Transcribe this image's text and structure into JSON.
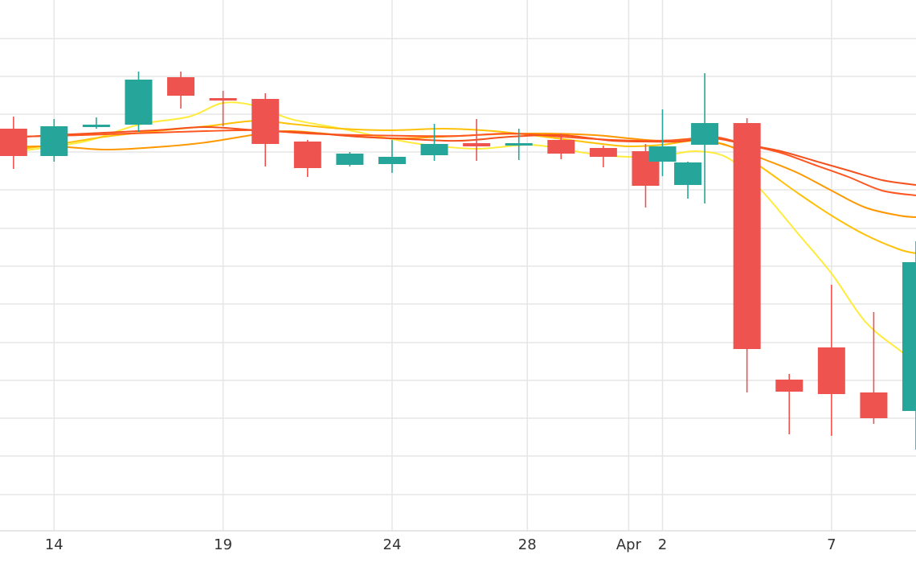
{
  "chart_data": {
    "type": "candlestick",
    "x_axis": {
      "tick_labels": [
        {
          "label": "14",
          "day": 14
        },
        {
          "label": "19",
          "day": 19
        },
        {
          "label": "24",
          "day": 24
        },
        {
          "label": "28",
          "day": 28
        },
        {
          "label": "Apr",
          "day": 31
        },
        {
          "label": "2",
          "day": 32
        },
        {
          "label": "7",
          "day": 37
        }
      ],
      "range": [
        12.4,
        39.5
      ]
    },
    "y_axis": {
      "range": [
        0,
        660
      ],
      "gridlines": [
        45,
        93,
        140,
        187,
        234,
        282,
        329,
        376,
        424,
        471,
        518,
        565,
        612
      ],
      "tick_labels_visible": false
    },
    "grid": true,
    "colors": {
      "up": "#26a69a",
      "down": "#ef5350",
      "grid": "#e6e6e6",
      "ma_lines": [
        "#ffeb3b",
        "#ffc107",
        "#ff9800",
        "#ff5722",
        "#f4511e"
      ]
    },
    "candles": [
      {
        "day": 12.8,
        "open": 500,
        "high": 515,
        "low": 450,
        "close": 466
      },
      {
        "day": 14.0,
        "open": 466,
        "high": 512,
        "low": 459,
        "close": 503
      },
      {
        "day": 15.25,
        "open": 503,
        "high": 514,
        "low": 500,
        "close": 505
      },
      {
        "day": 16.5,
        "open": 505,
        "high": 571,
        "low": 496,
        "close": 561
      },
      {
        "day": 17.75,
        "open": 564,
        "high": 571,
        "low": 525,
        "close": 541
      },
      {
        "day": 19.0,
        "open": 538,
        "high": 547,
        "low": 503,
        "close": 536
      },
      {
        "day": 20.25,
        "open": 537,
        "high": 544,
        "low": 453,
        "close": 481
      },
      {
        "day": 21.5,
        "open": 484,
        "high": 486,
        "low": 440,
        "close": 451
      },
      {
        "day": 22.75,
        "open": 455,
        "high": 471,
        "low": 453,
        "close": 469
      },
      {
        "day": 24.0,
        "open": 456,
        "high": 486,
        "low": 445,
        "close": 465
      },
      {
        "day": 25.25,
        "open": 467,
        "high": 506,
        "low": 460,
        "close": 481
      },
      {
        "day": 26.5,
        "open": 482,
        "high": 512,
        "low": 460,
        "close": 478
      },
      {
        "day": 27.75,
        "open": 481,
        "high": 500,
        "low": 461,
        "close": 482
      },
      {
        "day": 29.0,
        "open": 486,
        "high": 494,
        "low": 462,
        "close": 469
      },
      {
        "day": 30.25,
        "open": 476,
        "high": 479,
        "low": 452,
        "close": 465
      },
      {
        "day": 31.5,
        "open": 472,
        "high": 481,
        "low": 402,
        "close": 429
      },
      {
        "day": 32.75,
        "open": 430,
        "high": 459,
        "low": 413,
        "close": 458
      },
      {
        "day": 32.0,
        "open": 459,
        "high": 524,
        "low": 441,
        "close": 478
      },
      {
        "day": 33.25,
        "open": 480,
        "high": 569,
        "low": 407,
        "close": 507
      },
      {
        "day": 34.5,
        "open": 507,
        "high": 513,
        "low": 172,
        "close": 226
      },
      {
        "day": 35.75,
        "open": 188,
        "high": 195,
        "low": 120,
        "close": 173
      },
      {
        "day": 37.0,
        "open": 228,
        "high": 306,
        "low": 118,
        "close": 170
      },
      {
        "day": 38.25,
        "open": 172,
        "high": 272,
        "low": 133,
        "close": 140
      },
      {
        "day": 39.5,
        "open": 149,
        "high": 360,
        "low": 101,
        "close": 334
      }
    ],
    "moving_averages": [
      {
        "color": "#ffeb3b",
        "points": [
          [
            12.4,
            470
          ],
          [
            13.5,
            475
          ],
          [
            15,
            485
          ],
          [
            16.5,
            505
          ],
          [
            18,
            515
          ],
          [
            19,
            532
          ],
          [
            20,
            528
          ],
          [
            21,
            512
          ],
          [
            22.5,
            500
          ],
          [
            24,
            487
          ],
          [
            25,
            480
          ],
          [
            26.5,
            475
          ],
          [
            28,
            480
          ],
          [
            29,
            475
          ],
          [
            30,
            468
          ],
          [
            31,
            465
          ],
          [
            32,
            466
          ],
          [
            33,
            472
          ],
          [
            34,
            462
          ],
          [
            35,
            420
          ],
          [
            36,
            370
          ],
          [
            37,
            320
          ],
          [
            38,
            260
          ],
          [
            39,
            225
          ],
          [
            39.5,
            210
          ]
        ]
      },
      {
        "color": "#ffc107",
        "points": [
          [
            12.4,
            472
          ],
          [
            14,
            480
          ],
          [
            15.5,
            490
          ],
          [
            17,
            497
          ],
          [
            18.5,
            503
          ],
          [
            20,
            510
          ],
          [
            21,
            506
          ],
          [
            22.5,
            500
          ],
          [
            24,
            498
          ],
          [
            25.5,
            500
          ],
          [
            27,
            497
          ],
          [
            28.5,
            490
          ],
          [
            30,
            482
          ],
          [
            31,
            478
          ],
          [
            32,
            480
          ],
          [
            33,
            485
          ],
          [
            34,
            478
          ],
          [
            35,
            450
          ],
          [
            36,
            420
          ],
          [
            37,
            392
          ],
          [
            38,
            368
          ],
          [
            39,
            350
          ],
          [
            39.5,
            345
          ]
        ]
      },
      {
        "color": "#ff9800",
        "points": [
          [
            12.4,
            477
          ],
          [
            14,
            478
          ],
          [
            15.5,
            474
          ],
          [
            17,
            477
          ],
          [
            18.5,
            483
          ],
          [
            20,
            493
          ],
          [
            21,
            497
          ],
          [
            22.5,
            492
          ],
          [
            24,
            488
          ],
          [
            25.5,
            490
          ],
          [
            27,
            493
          ],
          [
            28.5,
            494
          ],
          [
            30,
            492
          ],
          [
            31,
            488
          ],
          [
            32,
            485
          ],
          [
            33,
            487
          ],
          [
            34,
            478
          ],
          [
            35,
            462
          ],
          [
            36,
            445
          ],
          [
            37,
            423
          ],
          [
            38,
            402
          ],
          [
            39,
            392
          ],
          [
            39.5,
            390
          ]
        ]
      },
      {
        "color": "#ff5722",
        "points": [
          [
            12.4,
            490
          ],
          [
            14,
            491
          ],
          [
            15.5,
            493
          ],
          [
            17,
            495
          ],
          [
            18.5,
            497
          ],
          [
            20,
            498
          ],
          [
            21.5,
            494
          ],
          [
            23,
            492
          ],
          [
            24.5,
            491
          ],
          [
            26,
            491
          ],
          [
            27.5,
            494
          ],
          [
            29,
            490
          ],
          [
            30.5,
            486
          ],
          [
            31.5,
            485
          ],
          [
            32.5,
            486
          ],
          [
            33.5,
            490
          ],
          [
            34.5,
            480
          ],
          [
            35.5,
            470
          ],
          [
            36.5,
            455
          ],
          [
            37.5,
            440
          ],
          [
            38.5,
            423
          ],
          [
            39.5,
            417
          ]
        ]
      },
      {
        "color": "#f4511e",
        "points": [
          [
            12.4,
            488
          ],
          [
            14,
            492
          ],
          [
            15.5,
            495
          ],
          [
            17,
            498
          ],
          [
            18.5,
            502
          ],
          [
            20,
            498
          ],
          [
            21.5,
            495
          ],
          [
            23,
            490
          ],
          [
            24.5,
            487
          ],
          [
            26,
            485
          ],
          [
            27.5,
            490
          ],
          [
            29,
            492
          ],
          [
            30.5,
            485
          ],
          [
            31.5,
            484
          ],
          [
            32.5,
            484
          ],
          [
            33.5,
            488
          ],
          [
            34.5,
            480
          ],
          [
            35.5,
            472
          ],
          [
            36.5,
            460
          ],
          [
            37.5,
            448
          ],
          [
            38.5,
            436
          ],
          [
            39.5,
            430
          ]
        ]
      }
    ]
  }
}
